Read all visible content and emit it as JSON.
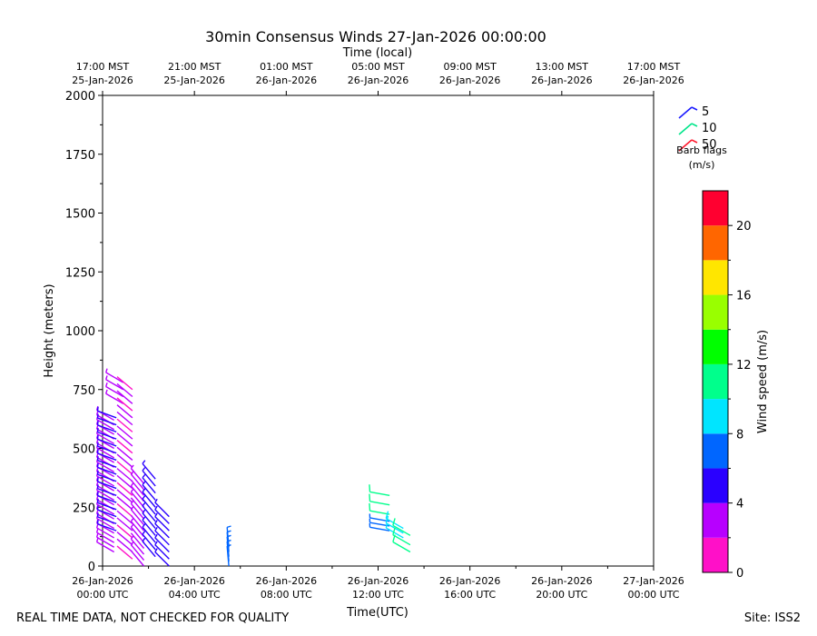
{
  "chart_data": {
    "type": "wind_barb_time_height",
    "title": "30min Consensus Winds 27-Jan-2026 00:00:00",
    "xlabel": "Time(UTC)",
    "ylabel": "Height (meters)",
    "top_xlabel": "Time (local)",
    "xlim_hours_utc": [
      0,
      24
    ],
    "ylim": [
      0,
      2000
    ],
    "y_ticks": [
      0,
      250,
      500,
      750,
      1000,
      1250,
      1500,
      1750,
      2000
    ],
    "x_ticks_utc": [
      {
        "hours": 0,
        "line1": "26-Jan-2026",
        "line2": "00:00 UTC"
      },
      {
        "hours": 4,
        "line1": "26-Jan-2026",
        "line2": "04:00 UTC"
      },
      {
        "hours": 8,
        "line1": "26-Jan-2026",
        "line2": "08:00 UTC"
      },
      {
        "hours": 12,
        "line1": "26-Jan-2026",
        "line2": "12:00 UTC"
      },
      {
        "hours": 16,
        "line1": "26-Jan-2026",
        "line2": "16:00 UTC"
      },
      {
        "hours": 20,
        "line1": "26-Jan-2026",
        "line2": "20:00 UTC"
      },
      {
        "hours": 24,
        "line1": "27-Jan-2026",
        "line2": "00:00 UTC"
      }
    ],
    "x_ticks_local": [
      {
        "hours": 0,
        "line1": "17:00 MST",
        "line2": "25-Jan-2026"
      },
      {
        "hours": 4,
        "line1": "21:00 MST",
        "line2": "25-Jan-2026"
      },
      {
        "hours": 8,
        "line1": "01:00 MST",
        "line2": "26-Jan-2026"
      },
      {
        "hours": 12,
        "line1": "05:00 MST",
        "line2": "26-Jan-2026"
      },
      {
        "hours": 16,
        "line1": "09:00 MST",
        "line2": "26-Jan-2026"
      },
      {
        "hours": 20,
        "line1": "13:00 MST",
        "line2": "26-Jan-2026"
      },
      {
        "hours": 24,
        "line1": "17:00 MST",
        "line2": "26-Jan-2026"
      }
    ],
    "legend": {
      "entries": [
        {
          "label": "5",
          "color": "#1a1aff"
        },
        {
          "label": "10",
          "color": "#00e58a"
        },
        {
          "label": "50",
          "color": "#ff1a2e"
        }
      ],
      "caption_line1": "Barb flags",
      "caption_line2": "(m/s)"
    },
    "colorbar": {
      "label": "Wind speed (m/s)",
      "range": [
        0,
        22
      ],
      "ticks": [
        0,
        4,
        8,
        12,
        16,
        20
      ],
      "bins": [
        {
          "from": 0,
          "to": 2,
          "color": "#ff10c8"
        },
        {
          "from": 2,
          "to": 4,
          "color": "#b700ff"
        },
        {
          "from": 4,
          "to": 6,
          "color": "#2a00ff"
        },
        {
          "from": 6,
          "to": 8,
          "color": "#0066ff"
        },
        {
          "from": 8,
          "to": 10,
          "color": "#00e5ff"
        },
        {
          "from": 10,
          "to": 12,
          "color": "#00ff8c"
        },
        {
          "from": 12,
          "to": 14,
          "color": "#00ff00"
        },
        {
          "from": 14,
          "to": 16,
          "color": "#99ff00"
        },
        {
          "from": 16,
          "to": 18,
          "color": "#ffe600"
        },
        {
          "from": 18,
          "to": 20,
          "color": "#ff6600"
        },
        {
          "from": 20,
          "to": 22,
          "color": "#ff0030"
        }
      ]
    },
    "barb_columns": [
      {
        "time_h": 0.5,
        "heights": [
          60,
          80,
          100,
          120,
          140,
          160,
          180,
          200,
          220,
          240,
          260,
          280,
          300,
          320,
          340,
          360,
          380,
          400,
          420,
          440,
          460,
          480,
          500,
          520,
          540,
          560,
          580,
          600,
          620
        ],
        "speed": 3.5,
        "dir": 300
      },
      {
        "time_h": 0.6,
        "heights": [
          150,
          180,
          210,
          240,
          270,
          300,
          330,
          360,
          390,
          420,
          450,
          480,
          510,
          540,
          570,
          600,
          630
        ],
        "speed": 5.0,
        "dir": 290
      },
      {
        "time_h": 0.9,
        "heights": [
          690,
          720,
          750,
          780
        ],
        "speed": 3.0,
        "dir": 300
      },
      {
        "time_h": 1.3,
        "heights": [
          30,
          60,
          90,
          120,
          150,
          180,
          210,
          240,
          270,
          300,
          330,
          360,
          390,
          420,
          450,
          480,
          510,
          540,
          570,
          600,
          630,
          660,
          690,
          720,
          750
        ],
        "speed": 2.0,
        "dir": 310
      },
      {
        "time_h": 1.8,
        "heights": [
          0,
          25,
          50,
          75,
          100,
          125,
          150,
          175,
          200,
          225,
          250,
          275,
          300,
          325,
          350
        ],
        "speed": 2.5,
        "dir": 320
      },
      {
        "time_h": 2.3,
        "heights": [
          40,
          70,
          100,
          130,
          160,
          190,
          220,
          250,
          280,
          310,
          340,
          370
        ],
        "speed": 4.5,
        "dir": 320
      },
      {
        "time_h": 2.9,
        "heights": [
          0,
          30,
          60,
          90,
          120,
          150,
          180,
          210
        ],
        "speed": 5.0,
        "dir": 315
      },
      {
        "time_h": 5.5,
        "heights": [
          0,
          20,
          40,
          60,
          80
        ],
        "speed": 7.0,
        "dir": 355
      },
      {
        "time_h": 12.5,
        "heights": [
          150,
          170,
          190
        ],
        "speed": 7.0,
        "dir": 280
      },
      {
        "time_h": 12.5,
        "heights": [
          220,
          260,
          300
        ],
        "speed": 11.0,
        "dir": 280
      },
      {
        "time_h": 13.1,
        "heights": [
          120,
          140,
          160
        ],
        "speed": 9.0,
        "dir": 300
      },
      {
        "time_h": 13.4,
        "heights": [
          60,
          90,
          130
        ],
        "speed": 10.5,
        "dir": 300
      }
    ]
  },
  "footer": {
    "disclaimer": "REAL TIME DATA, NOT CHECKED FOR QUALITY",
    "site": "Site: ISS2"
  }
}
